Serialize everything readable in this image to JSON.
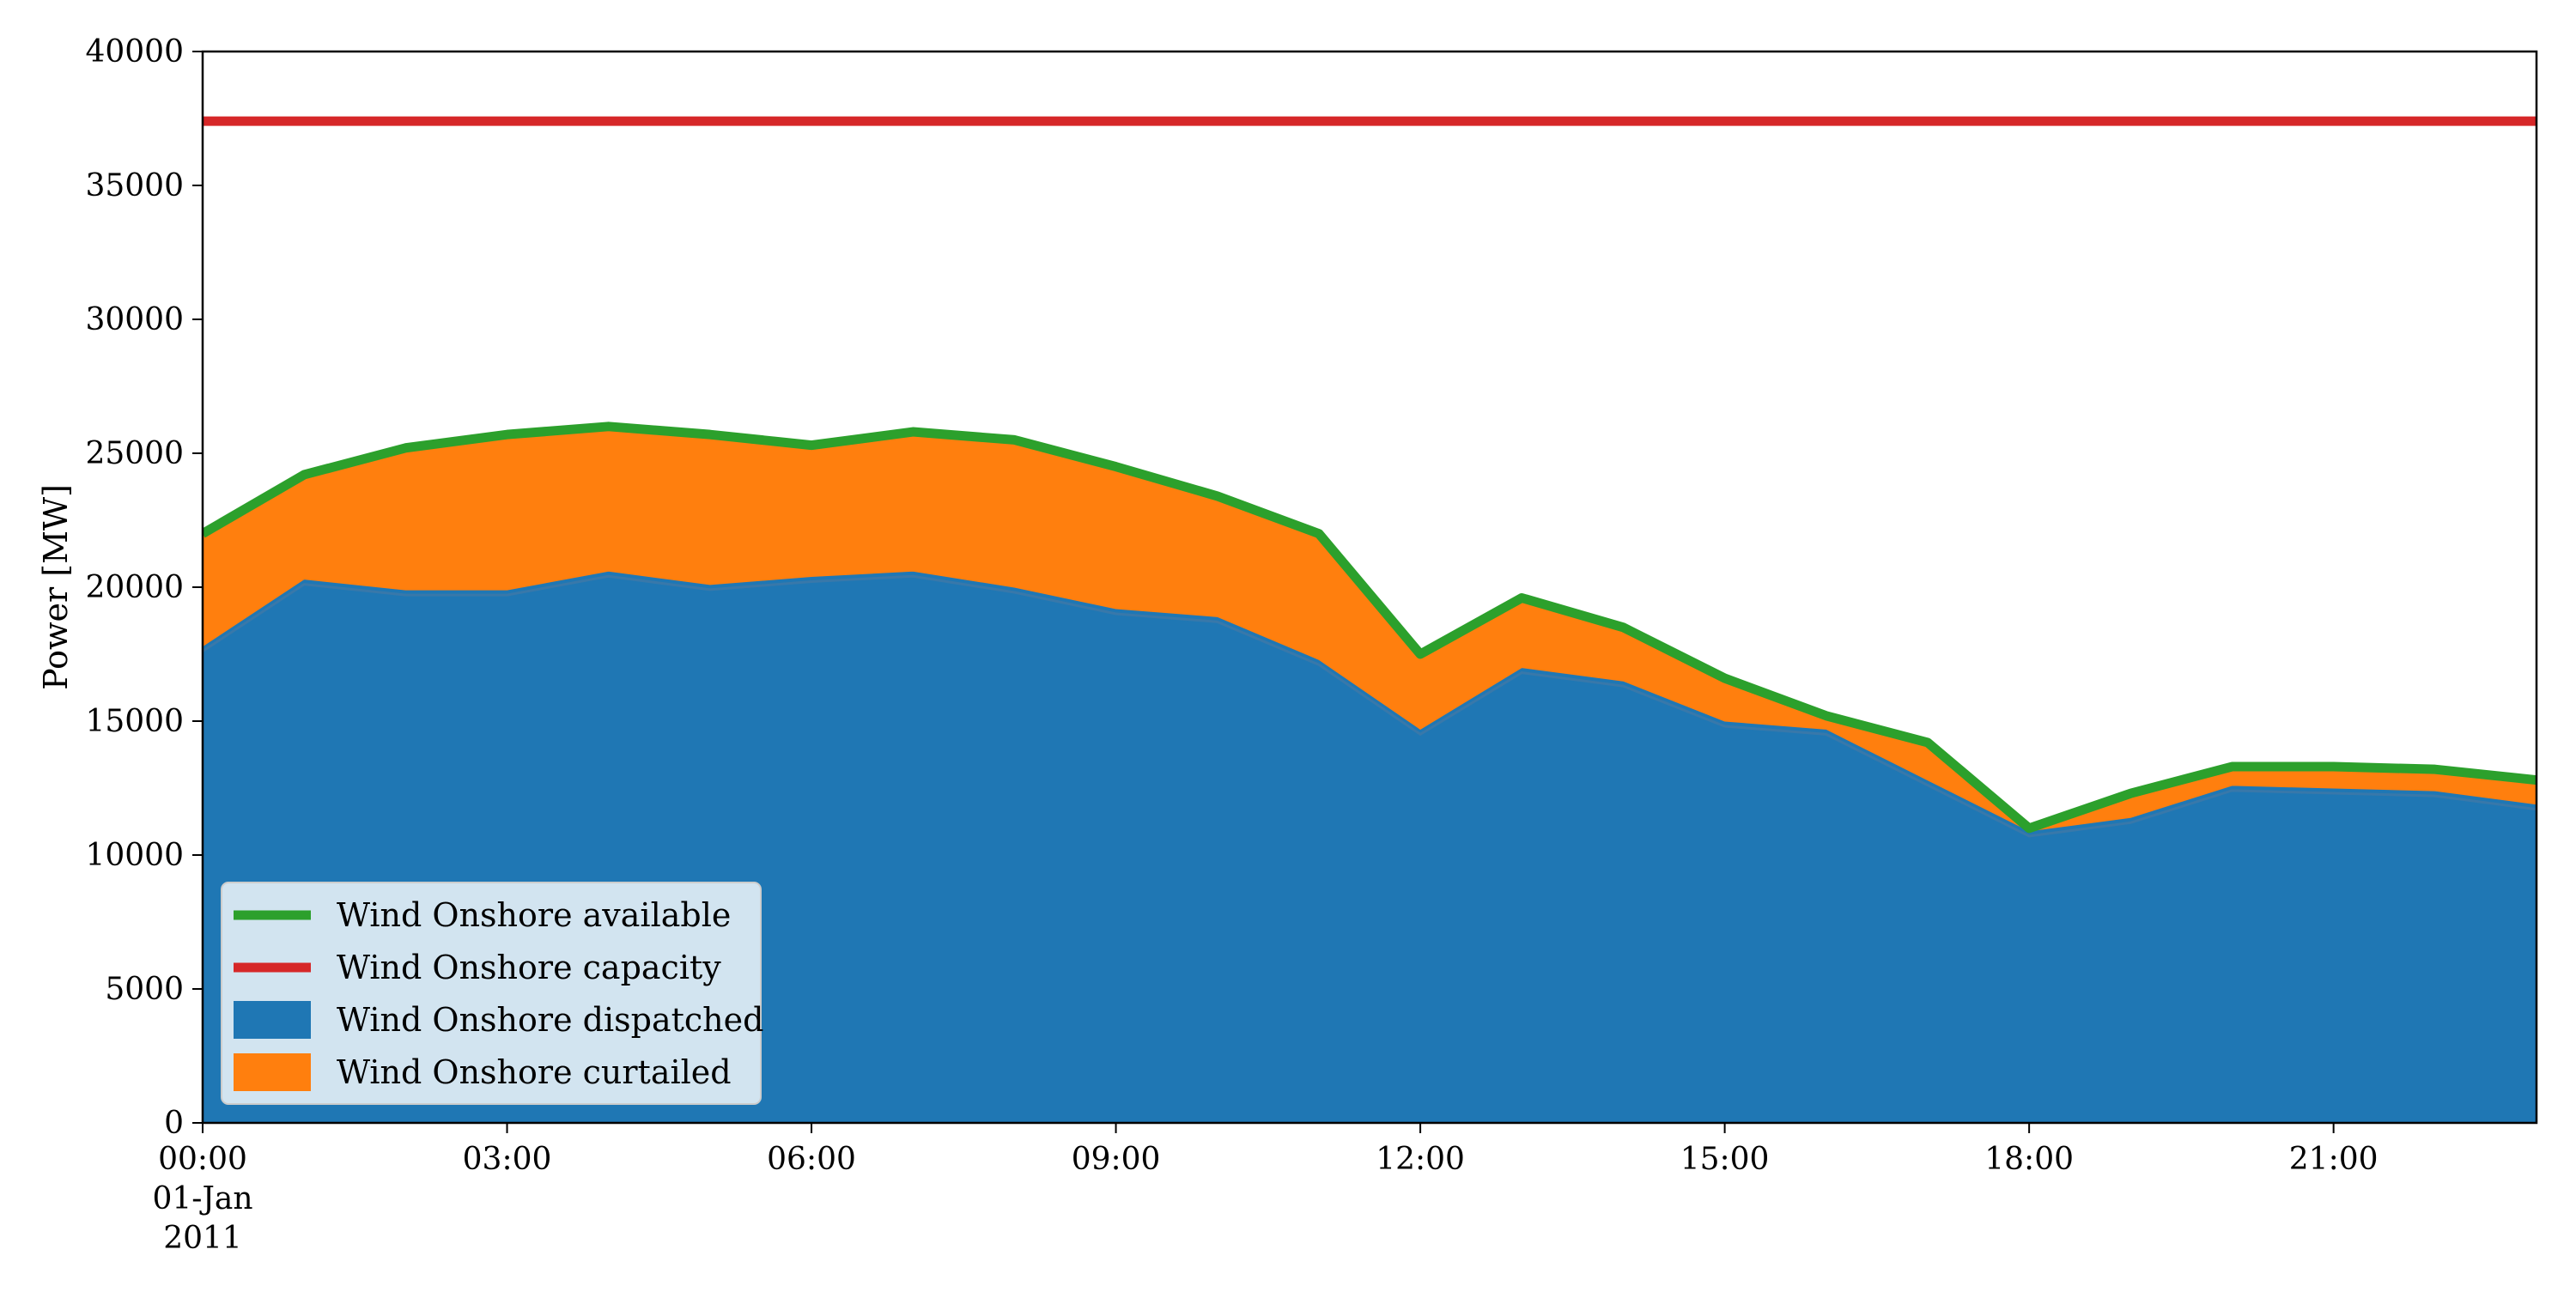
{
  "chart_data": {
    "type": "area",
    "xlabel": "",
    "ylabel": "Power [MW]",
    "ylim": [
      0,
      40000
    ],
    "xlim": [
      "2011-01-01 00:00",
      "2011-01-01 23:00"
    ],
    "x": [
      "2011-01-01 00:00",
      "2011-01-01 01:00",
      "2011-01-01 02:00",
      "2011-01-01 03:00",
      "2011-01-01 04:00",
      "2011-01-01 05:00",
      "2011-01-01 06:00",
      "2011-01-01 07:00",
      "2011-01-01 08:00",
      "2011-01-01 09:00",
      "2011-01-01 10:00",
      "2011-01-01 11:00",
      "2011-01-01 12:00",
      "2011-01-01 13:00",
      "2011-01-01 14:00",
      "2011-01-01 15:00",
      "2011-01-01 16:00",
      "2011-01-01 17:00",
      "2011-01-01 18:00",
      "2011-01-01 19:00",
      "2011-01-01 20:00",
      "2011-01-01 21:00",
      "2011-01-01 22:00",
      "2011-01-01 23:00"
    ],
    "yticks": [
      0,
      5000,
      10000,
      15000,
      20000,
      25000,
      30000,
      35000,
      40000
    ],
    "xtick_labels": [
      {
        "x": "2011-01-01 00:00",
        "lines": [
          "00:00",
          "01-Jan",
          "2011"
        ]
      },
      {
        "x": "2011-01-01 03:00",
        "lines": [
          "03:00"
        ]
      },
      {
        "x": "2011-01-01 06:00",
        "lines": [
          "06:00"
        ]
      },
      {
        "x": "2011-01-01 09:00",
        "lines": [
          "09:00"
        ]
      },
      {
        "x": "2011-01-01 12:00",
        "lines": [
          "12:00"
        ]
      },
      {
        "x": "2011-01-01 15:00",
        "lines": [
          "15:00"
        ]
      },
      {
        "x": "2011-01-01 18:00",
        "lines": [
          "18:00"
        ]
      },
      {
        "x": "2011-01-01 21:00",
        "lines": [
          "21:00"
        ]
      }
    ],
    "series": [
      {
        "name": "Wind Onshore dispatched",
        "kind": "area",
        "color": "#1f77b4",
        "values": [
          17800,
          20300,
          19900,
          19900,
          20600,
          20100,
          20400,
          20600,
          20000,
          19200,
          18900,
          17300,
          14700,
          17000,
          16500,
          15000,
          14700,
          12800,
          10900,
          11400,
          12600,
          12500,
          12400,
          11900
        ]
      },
      {
        "name": "Wind Onshore curtailed",
        "kind": "area",
        "stacked_on": "Wind Onshore dispatched",
        "color": "#ff7f0e",
        "values": [
          4200,
          3900,
          5300,
          5800,
          5400,
          5600,
          4900,
          5200,
          5500,
          5300,
          4500,
          4700,
          2800,
          2600,
          2000,
          1600,
          500,
          1400,
          100,
          900,
          700,
          800,
          800,
          900
        ]
      },
      {
        "name": "Wind Onshore available",
        "kind": "line",
        "color": "#2ca02c",
        "values": [
          22000,
          24200,
          25200,
          25700,
          26000,
          25700,
          25300,
          25800,
          25500,
          24500,
          23400,
          22000,
          17500,
          19600,
          18500,
          16600,
          15200,
          14200,
          11000,
          12300,
          13300,
          13300,
          13200,
          12800
        ]
      },
      {
        "name": "Wind Onshore capacity",
        "kind": "line",
        "color": "#d62728",
        "values": [
          37400,
          37400,
          37400,
          37400,
          37400,
          37400,
          37400,
          37400,
          37400,
          37400,
          37400,
          37400,
          37400,
          37400,
          37400,
          37400,
          37400,
          37400,
          37400,
          37400,
          37400,
          37400,
          37400,
          37400
        ]
      }
    ],
    "legend": {
      "placement": "lower-left",
      "entries": [
        {
          "label": "Wind Onshore available",
          "kind": "line",
          "color": "#2ca02c"
        },
        {
          "label": "Wind Onshore capacity",
          "kind": "line",
          "color": "#d62728"
        },
        {
          "label": "Wind Onshore dispatched",
          "kind": "patch",
          "color": "#1f77b4"
        },
        {
          "label": "Wind Onshore curtailed",
          "kind": "patch",
          "color": "#ff7f0e"
        }
      ]
    },
    "grid": false
  }
}
